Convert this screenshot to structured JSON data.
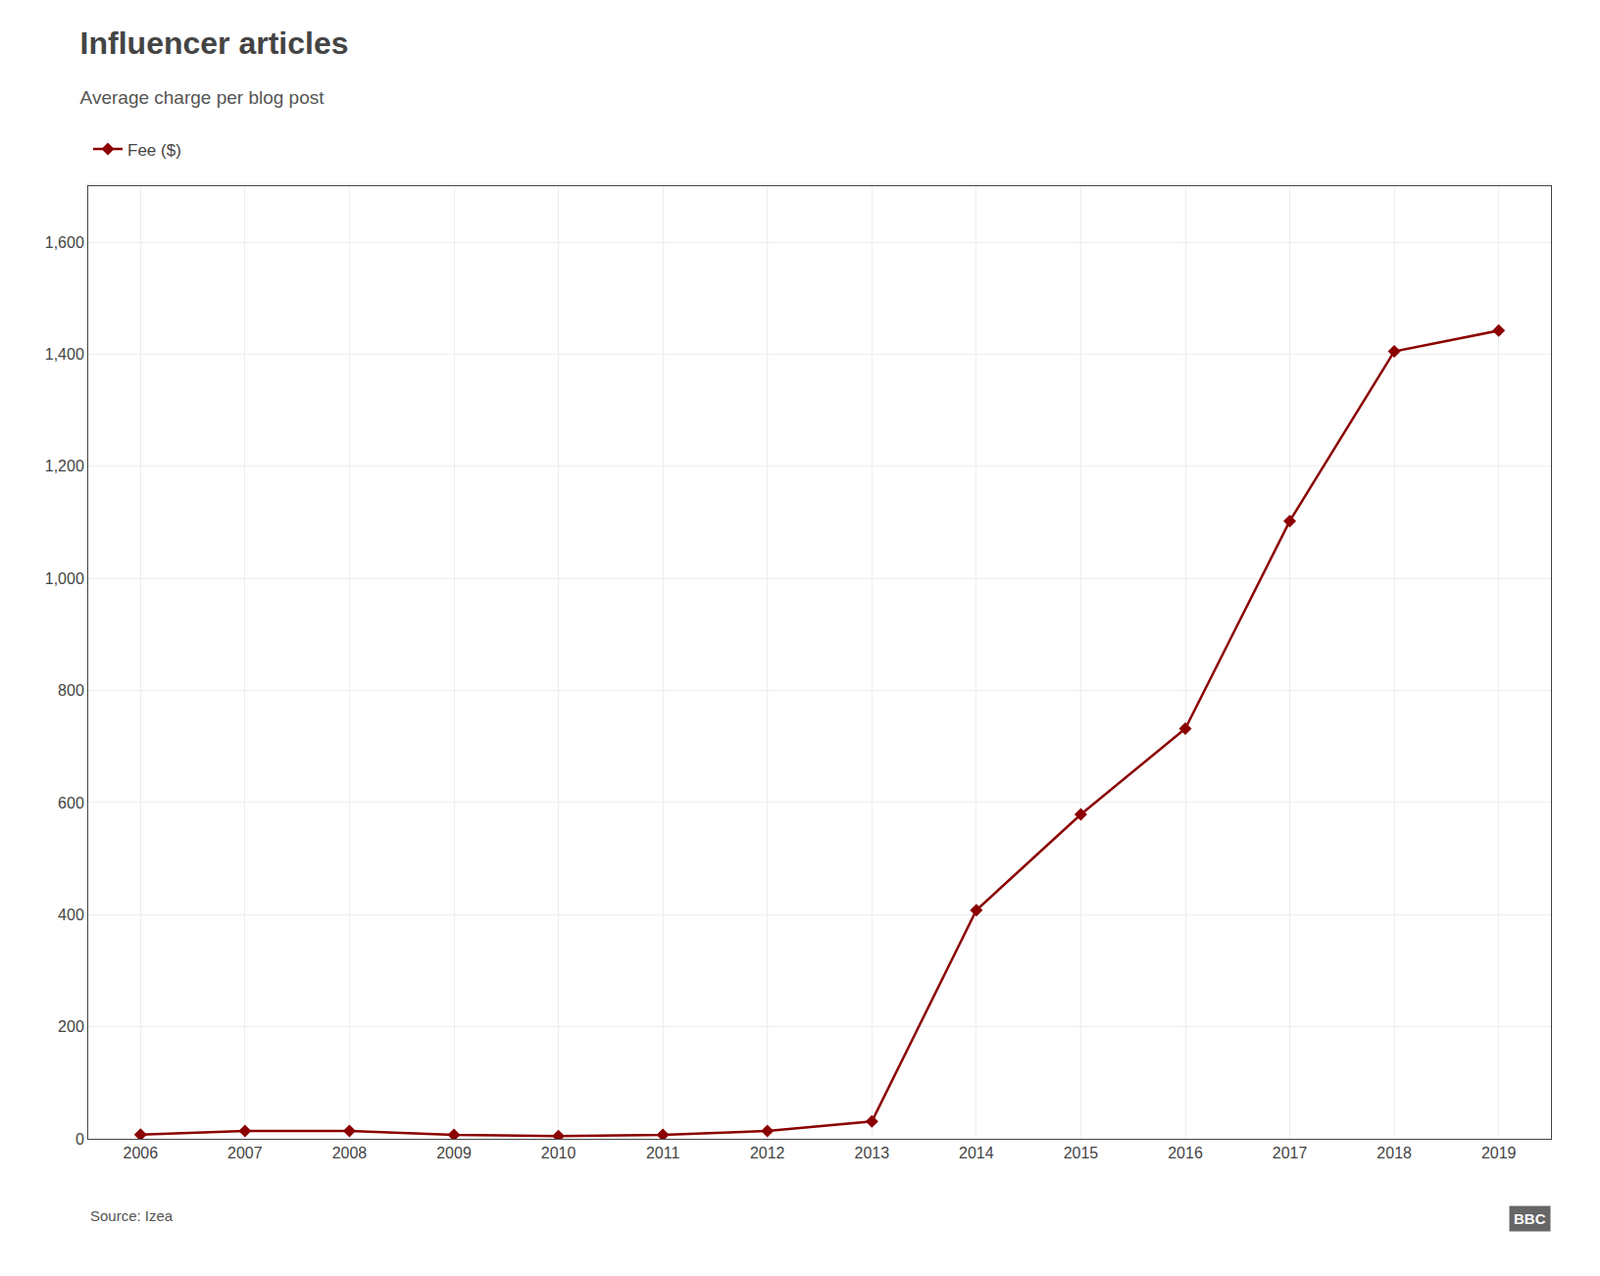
{
  "chart_data": {
    "type": "line",
    "title": "Influencer articles",
    "subtitle": "Average charge per blog post",
    "source": "Source: Izea",
    "annotations": [
      "BBC"
    ],
    "x": [
      2006,
      2007,
      2008,
      2009,
      2010,
      2011,
      2012,
      2013,
      2014,
      2015,
      2016,
      2017,
      2018,
      2019
    ],
    "series": [
      {
        "name": "Fee ($)",
        "color": "#8B0000",
        "marker": "diamond",
        "line_style": "solid",
        "values": [
          7.39,
          14.0,
          14.0,
          7.0,
          5.0,
          7.0,
          14.0,
          31.0,
          407.84,
          578.96,
          731.97,
          1102.5,
          1405.23,
          1442.27
        ]
      }
    ],
    "xlim": [
      2005.5,
      2019.5
    ],
    "xticks": [
      2006,
      2007,
      2008,
      2009,
      2010,
      2011,
      2012,
      2013,
      2014,
      2015,
      2016,
      2017,
      2018,
      2019
    ],
    "ylim": [
      0,
      1700
    ],
    "yticks": [
      0,
      200,
      400,
      600,
      800,
      {
        "value": 1000,
        "label": "1,000"
      },
      {
        "value": 1200,
        "label": "1,200"
      },
      {
        "value": 1400,
        "label": "1,400"
      },
      {
        "value": 1600,
        "label": "1,600"
      }
    ],
    "grid": true,
    "legend": "upper left"
  }
}
